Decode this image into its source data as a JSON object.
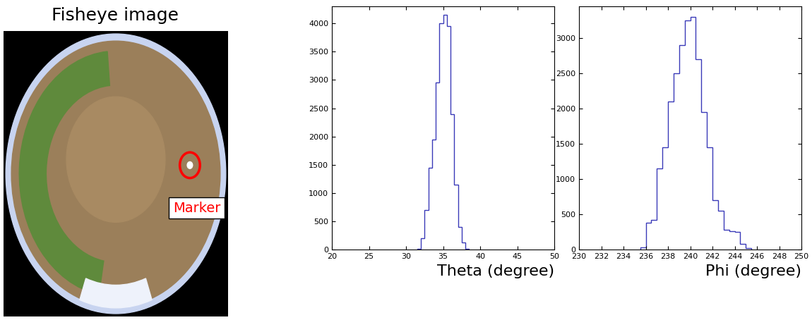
{
  "image": {
    "title": "Fisheye image",
    "annotation": "Marker"
  },
  "chart_data": [
    {
      "type": "histogram",
      "xlabel": "Theta (degree)",
      "color": "#3a3ab8",
      "bins": [
        31.5,
        32,
        32.5,
        33,
        33.5,
        34,
        34.5,
        35,
        35.5,
        36,
        36.5,
        37,
        37.5,
        38,
        38.5
      ],
      "values": [
        10,
        200,
        700,
        1450,
        1950,
        2950,
        4000,
        4150,
        3950,
        2400,
        1150,
        400,
        120,
        20
      ],
      "xlim": [
        20,
        50
      ],
      "xticks": [
        20,
        25,
        30,
        35,
        40,
        45,
        50
      ],
      "ylim": [
        0,
        4300
      ],
      "yticks": [
        0,
        500,
        1000,
        1500,
        2000,
        2500,
        3000,
        3500,
        4000
      ]
    },
    {
      "type": "histogram",
      "xlabel": "Phi (degree)",
      "color": "#3a3ab8",
      "bins": [
        235.5,
        236,
        236.5,
        237,
        237.5,
        238,
        238.5,
        239,
        239.5,
        240,
        240.5,
        241,
        241.5,
        242,
        242.5,
        243,
        243.5,
        244,
        244.5,
        245,
        245.5
      ],
      "values": [
        30,
        380,
        420,
        1150,
        1450,
        2100,
        2500,
        2900,
        3250,
        3300,
        2700,
        1950,
        1450,
        700,
        550,
        280,
        260,
        250,
        80,
        20
      ],
      "xlim": [
        230,
        250
      ],
      "xticks": [
        230,
        232,
        234,
        236,
        238,
        240,
        242,
        244,
        246,
        248,
        250
      ],
      "ylim": [
        0,
        3450
      ],
      "yticks": [
        0,
        500,
        1000,
        1500,
        2000,
        2500,
        3000
      ]
    }
  ]
}
